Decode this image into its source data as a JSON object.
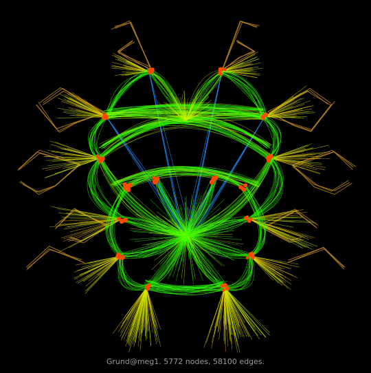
{
  "caption": "Grund@meg1. 5772 nodes, 58100 edges.",
  "colors": {
    "background": "#000000",
    "edge_short": "#2cff00",
    "edge_mid": "#c8f000",
    "edge_long": "#e8c000",
    "edge_far": "#c08a20",
    "edge_blue": "#1e90ff",
    "node": "#ff4a00",
    "caption_text": "#9a9a9a"
  }
}
